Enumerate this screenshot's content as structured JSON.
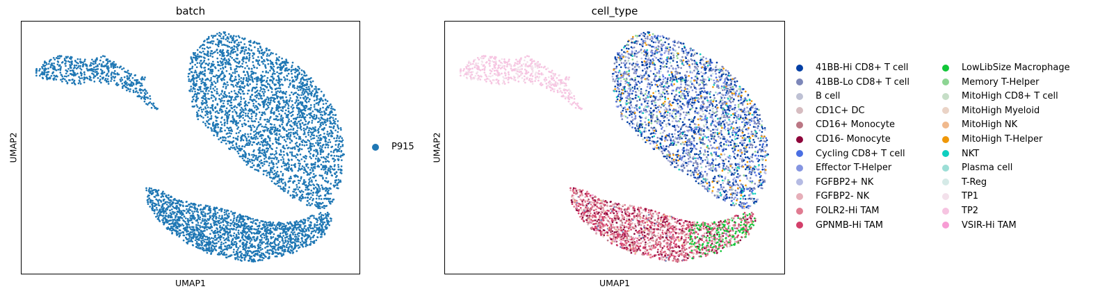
{
  "chart_data": [
    {
      "type": "scatter",
      "title": "batch",
      "xlabel": "UMAP1",
      "ylabel": "UMAP2",
      "grid": false,
      "legend_placement": "right",
      "series": [
        {
          "name": "P915",
          "color": "#1f77b4"
        }
      ]
    },
    {
      "type": "scatter",
      "title": "cell_type",
      "xlabel": "UMAP1",
      "ylabel": "UMAP2",
      "grid": false,
      "legend_placement": "right",
      "series": [
        {
          "name": "41BB-Hi CD8+ T cell",
          "color": "#023fa5"
        },
        {
          "name": "41BB-Lo CD8+ T cell",
          "color": "#7d87b9"
        },
        {
          "name": "B cell",
          "color": "#bec1d4"
        },
        {
          "name": "CD1C+ DC",
          "color": "#d6bcc0"
        },
        {
          "name": "CD16+ Monocyte",
          "color": "#bb7784"
        },
        {
          "name": "CD16- Monocyte",
          "color": "#8e063b"
        },
        {
          "name": "Cycling CD8+ T cell",
          "color": "#4a6fe3"
        },
        {
          "name": "Effector T-Helper",
          "color": "#8595e1"
        },
        {
          "name": "FGFBP2+ NK",
          "color": "#b5bbe3"
        },
        {
          "name": "FGFBP2- NK",
          "color": "#e6afb9"
        },
        {
          "name": "FOLR2-Hi TAM",
          "color": "#e07b91"
        },
        {
          "name": "GPNMB-Hi TAM",
          "color": "#d33f6a"
        },
        {
          "name": "LowLibSize Macrophage",
          "color": "#11c638"
        },
        {
          "name": "Memory T-Helper",
          "color": "#8dd593"
        },
        {
          "name": "MitoHigh CD8+ T cell",
          "color": "#c6dec7"
        },
        {
          "name": "MitoHigh Myeloid",
          "color": "#ead3c6"
        },
        {
          "name": "MitoHigh NK",
          "color": "#f0b98d"
        },
        {
          "name": "MitoHigh T-Helper",
          "color": "#ef9708"
        },
        {
          "name": "NKT",
          "color": "#0fcfc0"
        },
        {
          "name": "Plasma cell",
          "color": "#9cded6"
        },
        {
          "name": "T-Reg",
          "color": "#d5eae7"
        },
        {
          "name": "TP1",
          "color": "#f3e1eb"
        },
        {
          "name": "TP2",
          "color": "#f6c4e1"
        },
        {
          "name": "VSIR-Hi TAM",
          "color": "#f79cd4"
        }
      ]
    }
  ]
}
